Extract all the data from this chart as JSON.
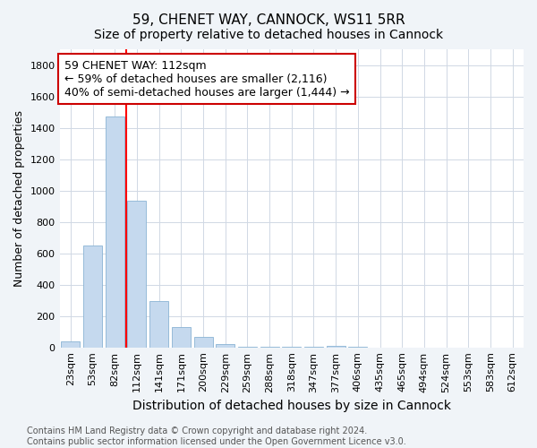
{
  "title": "59, CHENET WAY, CANNOCK, WS11 5RR",
  "subtitle": "Size of property relative to detached houses in Cannock",
  "xlabel": "Distribution of detached houses by size in Cannock",
  "ylabel": "Number of detached properties",
  "categories": [
    "23sqm",
    "53sqm",
    "82sqm",
    "112sqm",
    "141sqm",
    "171sqm",
    "200sqm",
    "229sqm",
    "259sqm",
    "288sqm",
    "318sqm",
    "347sqm",
    "377sqm",
    "406sqm",
    "435sqm",
    "465sqm",
    "494sqm",
    "524sqm",
    "553sqm",
    "583sqm",
    "612sqm"
  ],
  "values": [
    40,
    650,
    1470,
    935,
    295,
    130,
    65,
    22,
    5,
    2,
    2,
    2,
    12,
    2,
    0,
    0,
    0,
    0,
    0,
    0,
    0
  ],
  "bar_color": "#c5d9ee",
  "bar_edge_color": "#8ab4d4",
  "red_line_x": 3,
  "annotation_line1": "59 CHENET WAY: 112sqm",
  "annotation_line2": "← 59% of detached houses are smaller (2,116)",
  "annotation_line3": "40% of semi-detached houses are larger (1,444) →",
  "annotation_box_color": "#ffffff",
  "annotation_box_edge": "#cc0000",
  "ylim": [
    0,
    1900
  ],
  "yticks": [
    0,
    200,
    400,
    600,
    800,
    1000,
    1200,
    1400,
    1600,
    1800
  ],
  "grid_color": "#d0d8e4",
  "plot_bg_color": "#ffffff",
  "fig_bg_color": "#f0f4f8",
  "footer_text": "Contains HM Land Registry data © Crown copyright and database right 2024.\nContains public sector information licensed under the Open Government Licence v3.0.",
  "title_fontsize": 11,
  "subtitle_fontsize": 10,
  "xlabel_fontsize": 10,
  "ylabel_fontsize": 9,
  "tick_fontsize": 8,
  "footer_fontsize": 7,
  "annot_fontsize": 9
}
